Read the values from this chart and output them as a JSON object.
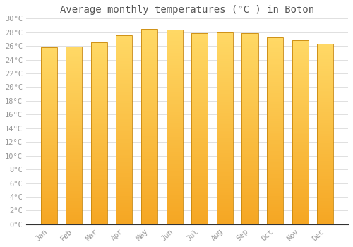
{
  "title": "Average monthly temperatures (°C ) in Boton",
  "months": [
    "Jan",
    "Feb",
    "Mar",
    "Apr",
    "May",
    "Jun",
    "Jul",
    "Aug",
    "Sep",
    "Oct",
    "Nov",
    "Dec"
  ],
  "temperatures": [
    25.8,
    25.9,
    26.5,
    27.6,
    28.5,
    28.4,
    27.9,
    28.0,
    27.9,
    27.3,
    26.8,
    26.3
  ],
  "ylim": [
    0,
    30
  ],
  "yticks": [
    0,
    2,
    4,
    6,
    8,
    10,
    12,
    14,
    16,
    18,
    20,
    22,
    24,
    26,
    28,
    30
  ],
  "bar_color_bottom": "#F5A623",
  "bar_color_top": "#FFD966",
  "bar_edge_color": "#C8860A",
  "background_color": "#FFFFFF",
  "plot_bg_color": "#FFFFFF",
  "grid_color": "#E0E0E0",
  "title_fontsize": 10,
  "tick_fontsize": 7.5,
  "tick_color": "#999999",
  "font_family": "monospace",
  "bar_width": 0.65,
  "n_gradient_steps": 100
}
